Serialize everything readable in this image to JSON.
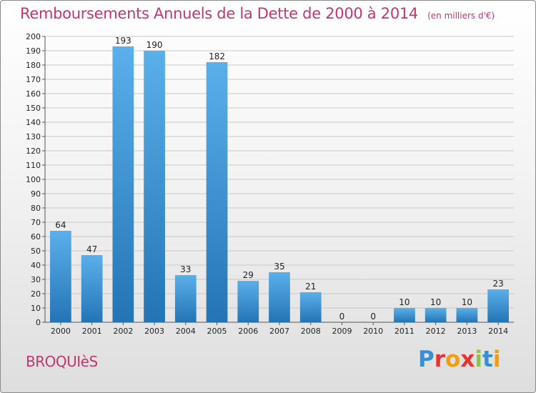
{
  "header": {
    "title": "Remboursements Annuels de la Dette de 2000 à 2014",
    "unit": "(en milliers d'€)"
  },
  "footer": {
    "commune": "BROQUIèS",
    "brand": "Proxiti",
    "brand_colors": [
      "#3a8fd0",
      "#e8322c",
      "#f39c12",
      "#e8322c",
      "#8dc63f",
      "#3a8fd0",
      "#f39c12"
    ]
  },
  "colors": {
    "title": "#c2366f",
    "bar_light": "#5ab0ea",
    "bar_dark": "#2474b5",
    "grid": "#c8c8c8"
  },
  "chart_data": {
    "type": "bar",
    "title": "Remboursements Annuels de la Dette de 2000 à 2014",
    "xlabel": "",
    "ylabel": "",
    "categories": [
      "2000",
      "2001",
      "2002",
      "2003",
      "2004",
      "2005",
      "2006",
      "2007",
      "2008",
      "2009",
      "2010",
      "2011",
      "2012",
      "2013",
      "2014"
    ],
    "values": [
      64,
      47,
      193,
      190,
      33,
      182,
      29,
      35,
      21,
      0,
      0,
      10,
      10,
      10,
      23
    ],
    "ylim": [
      0,
      200
    ],
    "yticks": [
      0,
      10,
      20,
      30,
      40,
      50,
      60,
      70,
      80,
      90,
      100,
      110,
      120,
      130,
      140,
      150,
      160,
      170,
      180,
      190,
      200
    ],
    "grid": true,
    "legend": "none"
  }
}
